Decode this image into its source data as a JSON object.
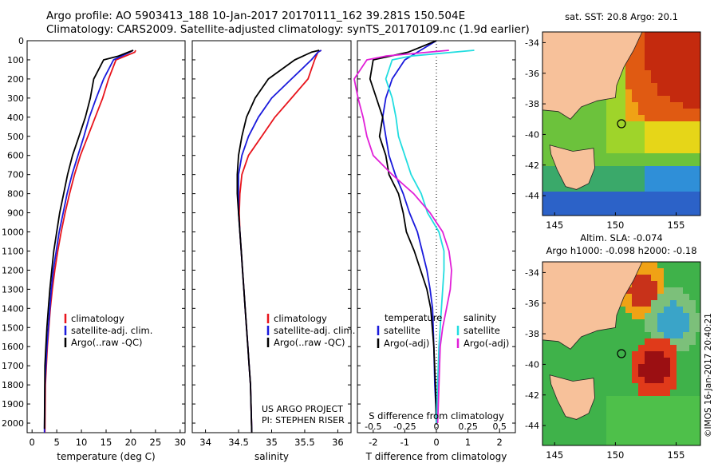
{
  "page": {
    "title_line1": "Argo profile: AO 5903413_188 10-Jan-2017 20170111_162 39.281S 150.504E",
    "title_line2": "Climatology: CARS2009. Satellite-adjusted climatology: synTS_20170109.nc (1.9d earlier)",
    "credit_line1": "US ARGO PROJECT",
    "credit_line2": "PI: STEPHEN RISER",
    "stamp": "©IMOS 16-Jan-2017 20:40:21"
  },
  "colors": {
    "climatology": "#e8141c",
    "satellite": "#1a1adc",
    "argo": "#000000",
    "sal_satellite": "#22dde0",
    "sal_argo": "#e11fd8",
    "land": "#f7c19a"
  },
  "chart_data": [
    {
      "id": "temp",
      "type": "line",
      "xlabel": "temperature (deg C)",
      "ylabel": "",
      "xlim": [
        -1,
        31
      ],
      "ylim": [
        2050,
        0
      ],
      "xticks": [
        0,
        5,
        10,
        15,
        20,
        25,
        30
      ],
      "yticks": [
        0,
        100,
        200,
        300,
        400,
        500,
        600,
        700,
        800,
        900,
        1000,
        1100,
        1200,
        1300,
        1400,
        1500,
        1600,
        1700,
        1800,
        1900,
        2000
      ],
      "legend": [
        "climatology",
        "satellite-adj. clim.",
        "Argo(..raw -QC)"
      ],
      "series": [
        {
          "name": "climatology",
          "color_key": "climatology",
          "x": [
            21,
            20.8,
            17,
            15.5,
            14.3,
            12.8,
            11.3,
            9.8,
            8.6,
            7.6,
            6.7,
            5.9,
            5.2,
            4.6,
            4.1,
            3.7,
            3.4,
            3.1,
            2.9,
            2.7,
            2.6
          ],
          "y": [
            50,
            60,
            100,
            200,
            300,
            400,
            500,
            600,
            700,
            800,
            900,
            1000,
            1100,
            1200,
            1300,
            1400,
            1500,
            1600,
            1700,
            1800,
            2050
          ]
        },
        {
          "name": "satellite-adj. clim.",
          "color_key": "satellite",
          "x": [
            20.5,
            19.8,
            16.5,
            14.5,
            13,
            11.6,
            10.5,
            9.3,
            8.1,
            7.1,
            6.3,
            5.5,
            4.9,
            4.3,
            3.9,
            3.6,
            3.3,
            3.0,
            2.8,
            2.6,
            2.5
          ],
          "y": [
            50,
            60,
            100,
            200,
            300,
            400,
            500,
            600,
            700,
            800,
            900,
            1000,
            1100,
            1200,
            1300,
            1400,
            1500,
            1600,
            1700,
            1800,
            2050
          ]
        },
        {
          "name": "Argo(..raw -QC)",
          "color_key": "argo",
          "x": [
            20.5,
            19.5,
            17.5,
            14.5,
            12.5,
            11.8,
            10.8,
            9.5,
            8.2,
            7.2,
            6.4,
            5.6,
            5.0,
            4.4,
            4.0,
            3.6,
            3.3,
            3.0,
            2.8,
            2.6,
            2.5
          ],
          "y": [
            50,
            60,
            80,
            100,
            200,
            300,
            400,
            500,
            600,
            700,
            800,
            900,
            1000,
            1100,
            1200,
            1300,
            1400,
            1500,
            1600,
            1700,
            2030
          ]
        }
      ]
    },
    {
      "id": "sal",
      "type": "line",
      "xlabel": "salinity",
      "ylabel": "",
      "xlim": [
        33.8,
        36.2
      ],
      "ylim": [
        2050,
        0
      ],
      "xticks": [
        34,
        34.5,
        35,
        35.5,
        36
      ],
      "legend": [
        "climatology",
        "satellite-adj. clim.",
        "Argo(..raw -QC)"
      ],
      "series": [
        {
          "name": "climatology",
          "color_key": "climatology",
          "x": [
            35.75,
            35.7,
            35.65,
            35.55,
            35.3,
            35.05,
            34.85,
            34.65,
            34.55,
            34.52,
            34.51,
            34.52,
            34.54,
            34.56,
            34.58,
            34.6,
            34.62,
            34.64,
            34.66,
            34.68,
            34.7
          ],
          "y": [
            50,
            60,
            100,
            200,
            300,
            400,
            500,
            600,
            700,
            800,
            900,
            1000,
            1100,
            1200,
            1300,
            1400,
            1500,
            1600,
            1700,
            1800,
            2050
          ]
        },
        {
          "name": "satellite-adj. clim.",
          "color_key": "satellite",
          "x": [
            35.75,
            35.7,
            35.6,
            35.3,
            35.0,
            34.8,
            34.65,
            34.55,
            34.5,
            34.5,
            34.5,
            34.52,
            34.54,
            34.56,
            34.58,
            34.6,
            34.62,
            34.64,
            34.66,
            34.68,
            34.7
          ],
          "y": [
            50,
            60,
            100,
            200,
            300,
            400,
            500,
            600,
            700,
            800,
            900,
            1000,
            1100,
            1200,
            1300,
            1400,
            1500,
            1600,
            1700,
            1800,
            2050
          ]
        },
        {
          "name": "Argo(..raw -QC)",
          "color_key": "argo",
          "x": [
            35.72,
            35.6,
            35.35,
            34.95,
            34.75,
            34.62,
            34.55,
            34.5,
            34.48,
            34.48,
            34.5,
            34.52,
            34.54,
            34.56,
            34.58,
            34.6,
            34.62,
            34.64,
            34.66,
            34.68,
            34.7
          ],
          "y": [
            50,
            60,
            100,
            200,
            300,
            400,
            500,
            600,
            700,
            800,
            900,
            1000,
            1100,
            1200,
            1300,
            1400,
            1500,
            1600,
            1700,
            1800,
            2050
          ]
        }
      ]
    },
    {
      "id": "diff",
      "type": "line",
      "xlabel": "T difference from climatology",
      "xlabel_top": "S difference from climatology",
      "xlim": [
        -2.5,
        2.5
      ],
      "ylim": [
        2050,
        0
      ],
      "xticks": [
        -2,
        -1,
        0,
        1,
        2
      ],
      "xticks_top": [
        -0.5,
        -0.25,
        0,
        0.25,
        0.5
      ],
      "legend_left_title": "temperature",
      "legend_right_title": "salinity",
      "legend": [
        "satellite",
        "Argo(-adj)",
        "satellite",
        "Argo(-adj)"
      ],
      "series": [
        {
          "name": "satellite",
          "color_key": "satellite",
          "x": [
            0,
            -0.6,
            -1,
            -1.4,
            -1.6,
            -1.7,
            -1.6,
            -1.5,
            -1.3,
            -1.05,
            -0.85,
            -0.6,
            -0.45,
            -0.3,
            -0.2,
            -0.12,
            -0.08,
            -0.05,
            -0.02,
            0
          ],
          "y": [
            0,
            60,
            100,
            200,
            300,
            400,
            500,
            600,
            700,
            800,
            900,
            1000,
            1100,
            1200,
            1300,
            1400,
            1600,
            1800,
            1900,
            2000
          ]
        },
        {
          "name": "Argo(-adj)",
          "color_key": "argo",
          "x": [
            0,
            -0.9,
            -2,
            -2.1,
            -1.9,
            -1.7,
            -1.8,
            -1.6,
            -1.5,
            -1.2,
            -1.05,
            -0.95,
            -0.7,
            -0.5,
            -0.3,
            -0.18,
            -0.08,
            -0.03,
            0
          ],
          "y": [
            0,
            60,
            100,
            200,
            300,
            400,
            500,
            600,
            700,
            800,
            900,
            1000,
            1100,
            1200,
            1300,
            1400,
            1600,
            1800,
            2000
          ]
        },
        {
          "name": "satellite",
          "color_key": "sal_satellite",
          "x": [
            0.3,
            -0.2,
            -0.35,
            -0.4,
            -0.35,
            -0.32,
            -0.3,
            -0.25,
            -0.2,
            -0.12,
            -0.07,
            0.02,
            0.06,
            0.06,
            0.05,
            0.04,
            0.03,
            0.02,
            0.01,
            0
          ],
          "y": [
            50,
            80,
            100,
            200,
            300,
            400,
            500,
            600,
            700,
            800,
            900,
            1000,
            1100,
            1200,
            1300,
            1400,
            1500,
            1600,
            1800,
            2000
          ]
        },
        {
          "name": "Argo(-adj)",
          "color_key": "sal_argo",
          "x": [
            0.1,
            -0.4,
            -0.55,
            -0.65,
            -0.62,
            -0.58,
            -0.55,
            -0.5,
            -0.35,
            -0.18,
            -0.05,
            0.05,
            0.1,
            0.12,
            0.11,
            0.08,
            0.05,
            0.03,
            0.02,
            0.01
          ],
          "y": [
            50,
            80,
            100,
            200,
            300,
            400,
            500,
            600,
            700,
            800,
            900,
            1000,
            1100,
            1200,
            1300,
            1400,
            1500,
            1600,
            1800,
            2000
          ]
        }
      ]
    },
    {
      "id": "map_sst",
      "type": "heatmap",
      "title": "sat. SST: 20.8  Argo: 20.1",
      "xticks": [
        145,
        150,
        155
      ],
      "yticks": [
        -34,
        -36,
        -38,
        -40,
        -42,
        -44
      ],
      "xlim": [
        144,
        157
      ],
      "ylim": [
        -45.3,
        -33.3
      ],
      "argo_position": [
        150.5,
        -39.3
      ]
    },
    {
      "id": "map_sla",
      "type": "heatmap",
      "title": "Altim. SLA: -0.074",
      "subtitle": "Argo h1000: -0.098  h2000: -0.18",
      "xticks": [
        145,
        150,
        155
      ],
      "yticks": [
        -34,
        -36,
        -38,
        -40,
        -42,
        -44
      ],
      "xlim": [
        144,
        157
      ],
      "ylim": [
        -45.3,
        -33.3
      ],
      "argo_position": [
        150.5,
        -39.3
      ]
    }
  ]
}
